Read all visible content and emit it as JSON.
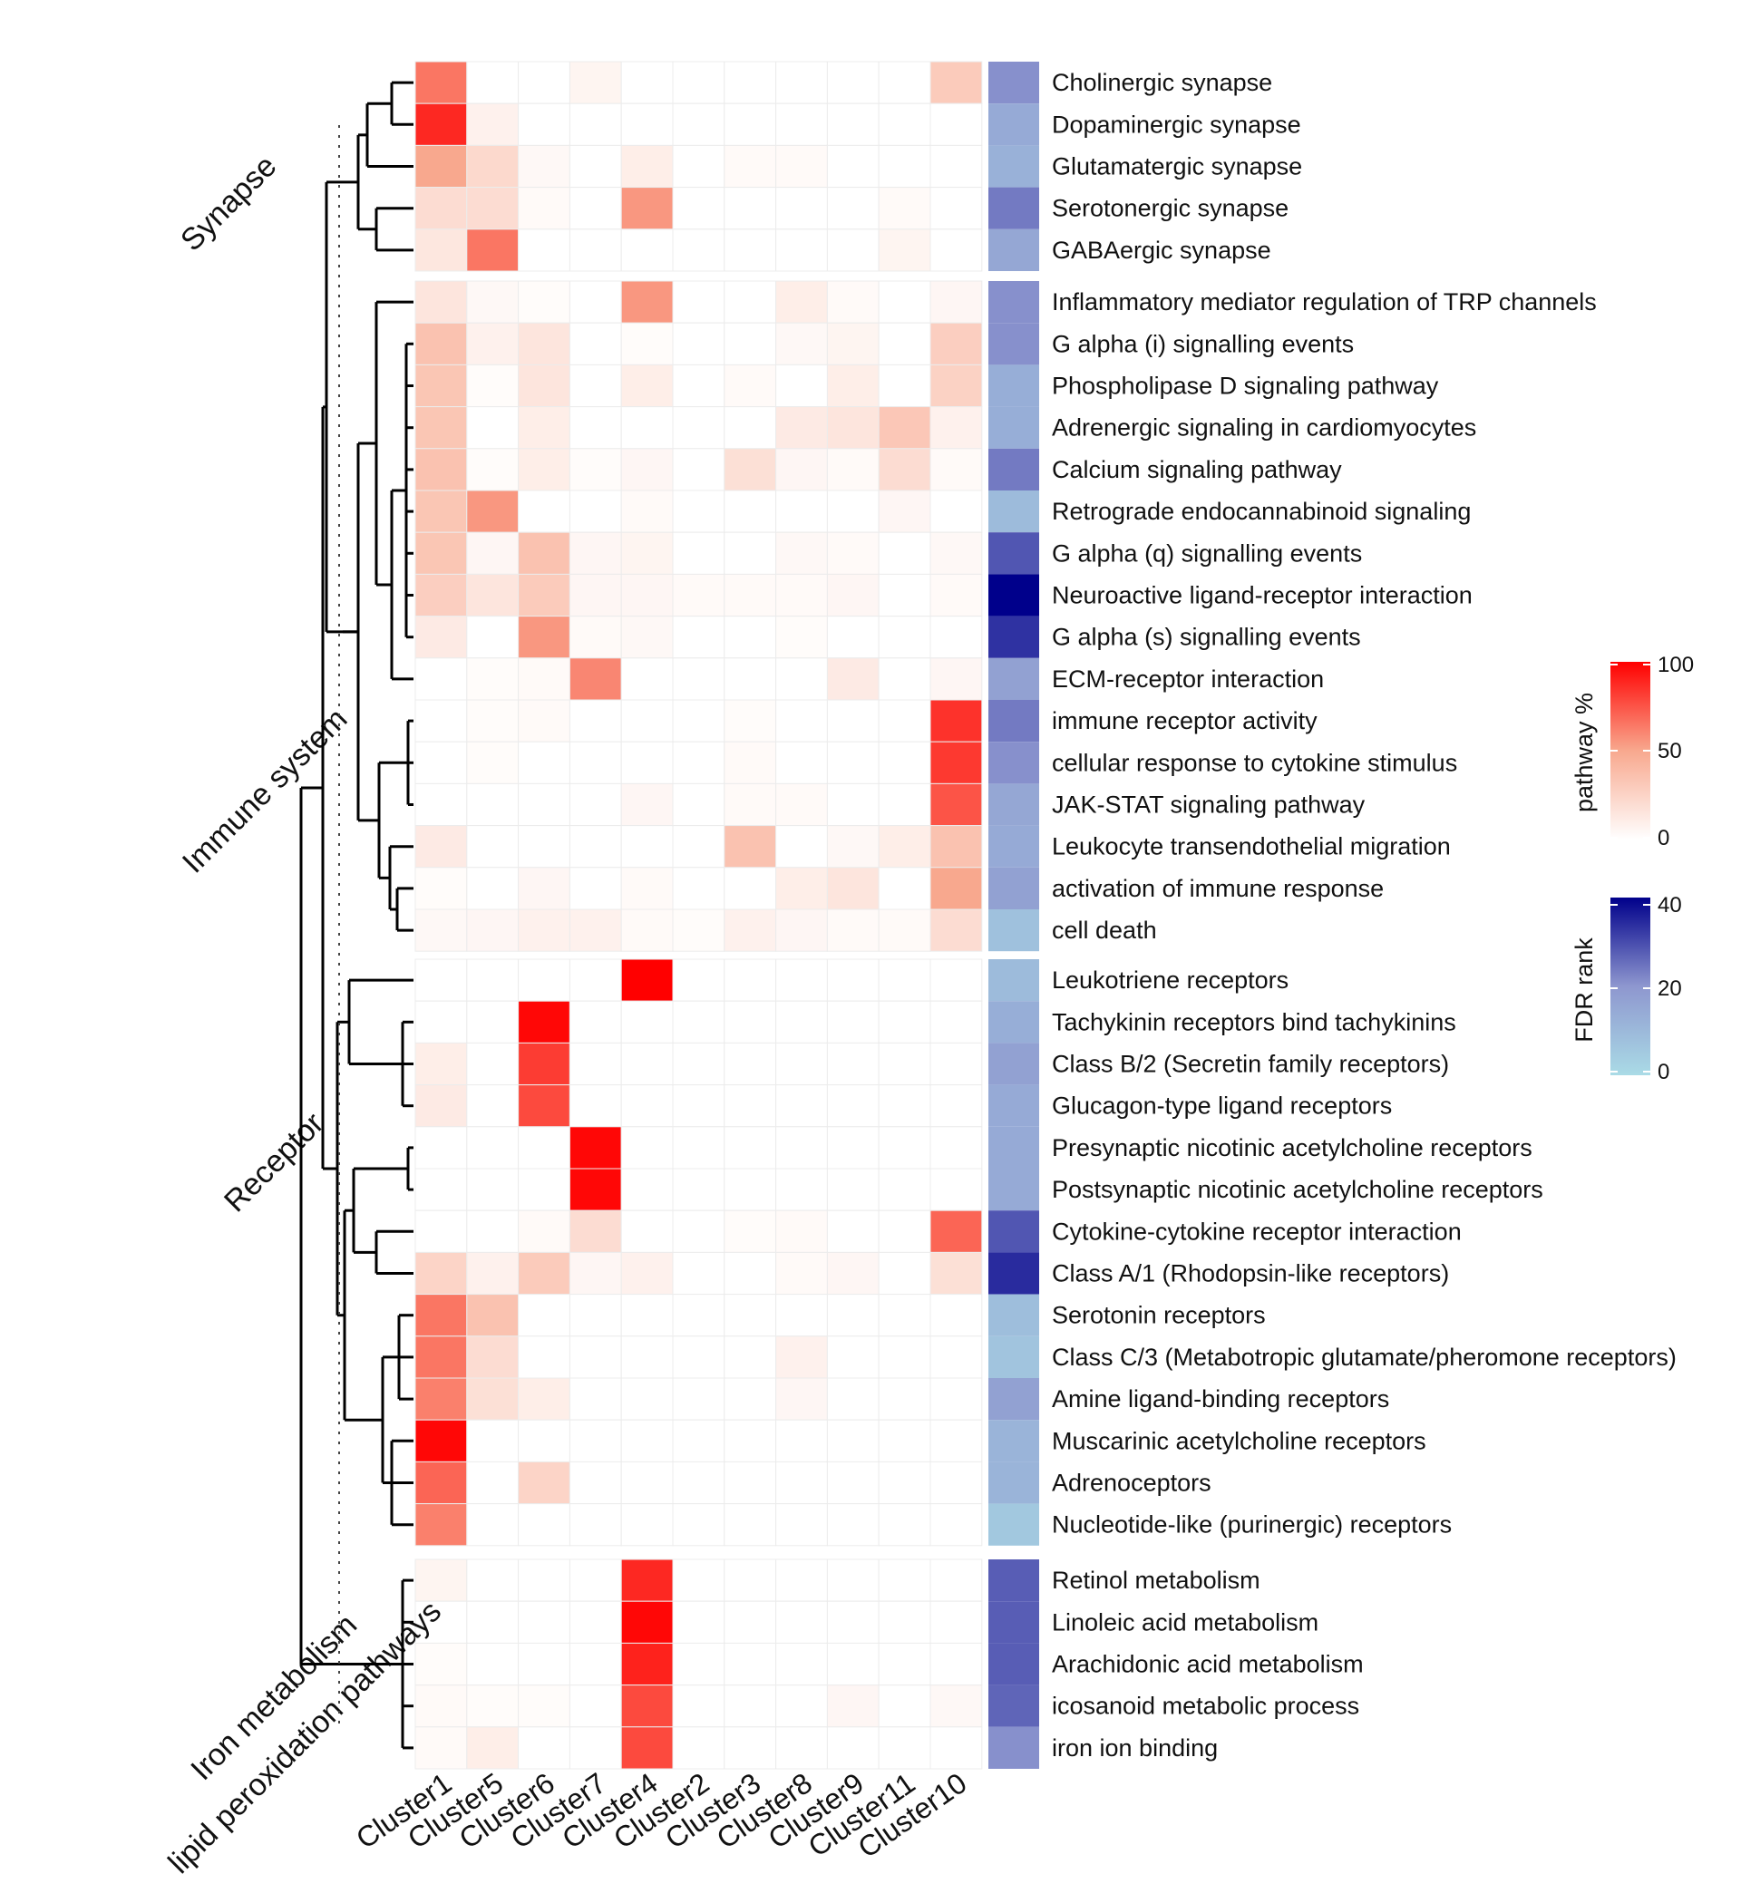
{
  "chart_data": {
    "type": "heatmap",
    "title": "",
    "columns": [
      "Cluster1",
      "Cluster5",
      "Cluster6",
      "Cluster7",
      "Cluster4",
      "Cluster2",
      "Cluster3",
      "Cluster8",
      "Cluster9",
      "Cluster11",
      "Cluster10"
    ],
    "groups": [
      {
        "name": "Synapse",
        "rows": [
          {
            "label": "Cholinergic synapse",
            "values": [
              65,
              0,
              0,
              6,
              0,
              0,
              0,
              0,
              0,
              0,
              30
            ],
            "fdr": 22
          },
          {
            "label": "Dopaminergic synapse",
            "values": [
              88,
              8,
              0,
              0,
              0,
              0,
              0,
              0,
              0,
              0,
              0
            ],
            "fdr": 15
          },
          {
            "label": "Glutamatergic synapse",
            "values": [
              50,
              22,
              4,
              0,
              10,
              0,
              3,
              3,
              0,
              0,
              0
            ],
            "fdr": 13
          },
          {
            "label": "Serotonergic synapse",
            "values": [
              20,
              20,
              3,
              0,
              55,
              0,
              0,
              0,
              0,
              3,
              0
            ],
            "fdr": 25
          },
          {
            "label": "GABAergic synapse",
            "values": [
              14,
              65,
              0,
              0,
              0,
              0,
              0,
              0,
              0,
              6,
              0
            ],
            "fdr": 16
          }
        ]
      },
      {
        "name": "Immune system",
        "rows": [
          {
            "label": "Inflammatory mediator regulation of TRP channels",
            "values": [
              15,
              4,
              2,
              0,
              55,
              0,
              0,
              10,
              3,
              0,
              5
            ],
            "fdr": 22
          },
          {
            "label": "G alpha (i) signalling events",
            "values": [
              35,
              8,
              15,
              0,
              2,
              0,
              0,
              4,
              6,
              0,
              28
            ],
            "fdr": 22
          },
          {
            "label": "Phospholipase D signaling pathway",
            "values": [
              33,
              2,
              15,
              0,
              10,
              0,
              3,
              0,
              10,
              0,
              26
            ],
            "fdr": 14
          },
          {
            "label": "Adrenergic signaling in cardiomyocytes",
            "values": [
              33,
              0,
              10,
              0,
              0,
              0,
              0,
              12,
              15,
              32,
              8
            ],
            "fdr": 14
          },
          {
            "label": "Calcium signaling pathway",
            "values": [
              35,
              2,
              10,
              2,
              5,
              0,
              18,
              5,
              3,
              20,
              3
            ],
            "fdr": 25
          },
          {
            "label": "Retrograde endocannabinoid signaling",
            "values": [
              33,
              55,
              0,
              0,
              3,
              0,
              0,
              0,
              0,
              5,
              0
            ],
            "fdr": 10
          },
          {
            "label": "G alpha (q) signalling events",
            "values": [
              33,
              5,
              35,
              5,
              6,
              0,
              0,
              4,
              3,
              0,
              4
            ],
            "fdr": 30
          },
          {
            "label": "Neuroactive ligand-receptor interaction",
            "values": [
              28,
              15,
              30,
              5,
              5,
              3,
              3,
              3,
              5,
              0,
              3
            ],
            "fdr": 42
          },
          {
            "label": "G alpha (s) signalling events",
            "values": [
              12,
              0,
              55,
              3,
              4,
              0,
              0,
              2,
              0,
              0,
              0
            ],
            "fdr": 35
          },
          {
            "label": "ECM-receptor interaction",
            "values": [
              0,
              2,
              3,
              60,
              0,
              0,
              0,
              0,
              12,
              0,
              5
            ],
            "fdr": 18
          },
          {
            "label": "immune receptor activity",
            "values": [
              0,
              2,
              3,
              0,
              0,
              0,
              2,
              0,
              0,
              0,
              85
            ],
            "fdr": 25
          },
          {
            "label": "cellular response to cytokine stimulus",
            "values": [
              0,
              2,
              0,
              0,
              0,
              0,
              3,
              0,
              0,
              0,
              83
            ],
            "fdr": 22
          },
          {
            "label": "JAK-STAT signaling pathway",
            "values": [
              0,
              0,
              0,
              0,
              5,
              0,
              3,
              3,
              0,
              0,
              75
            ],
            "fdr": 16
          },
          {
            "label": "Leukocyte transendothelial migration",
            "values": [
              12,
              0,
              0,
              0,
              0,
              0,
              35,
              0,
              4,
              10,
              35
            ],
            "fdr": 15
          },
          {
            "label": "activation of immune response",
            "values": [
              2,
              0,
              5,
              0,
              3,
              0,
              0,
              10,
              15,
              0,
              50
            ],
            "fdr": 18
          },
          {
            "label": "cell death",
            "values": [
              4,
              5,
              8,
              8,
              3,
              2,
              8,
              5,
              3,
              3,
              20
            ],
            "fdr": 8
          }
        ]
      },
      {
        "name": "Receptor",
        "rows": [
          {
            "label": "Leukotriene receptors",
            "values": [
              0,
              0,
              0,
              0,
              100,
              0,
              0,
              0,
              0,
              0,
              0
            ],
            "fdr": 10
          },
          {
            "label": "Tachykinin receptors bind tachykinins",
            "values": [
              0,
              0,
              98,
              0,
              0,
              0,
              0,
              0,
              0,
              0,
              0
            ],
            "fdr": 14
          },
          {
            "label": "Class B/2 (Secretin family receptors)",
            "values": [
              10,
              0,
              82,
              0,
              0,
              0,
              0,
              0,
              0,
              0,
              0
            ],
            "fdr": 18
          },
          {
            "label": "Glucagon-type ligand receptors",
            "values": [
              12,
              0,
              78,
              0,
              0,
              0,
              0,
              0,
              0,
              0,
              0
            ],
            "fdr": 15
          },
          {
            "label": "Presynaptic nicotinic acetylcholine receptors",
            "values": [
              0,
              0,
              0,
              98,
              0,
              0,
              0,
              0,
              0,
              0,
              0
            ],
            "fdr": 15
          },
          {
            "label": "Postsynaptic nicotinic acetylcholine receptors",
            "values": [
              0,
              0,
              0,
              98,
              0,
              0,
              0,
              0,
              0,
              0,
              0
            ],
            "fdr": 15
          },
          {
            "label": "Cytokine-cytokine receptor interaction",
            "values": [
              0,
              0,
              3,
              20,
              0,
              0,
              2,
              3,
              0,
              0,
              70
            ],
            "fdr": 30
          },
          {
            "label": "Class A/1 (Rhodopsin-like receptors)",
            "values": [
              25,
              8,
              30,
              5,
              8,
              0,
              0,
              3,
              5,
              0,
              18
            ],
            "fdr": 36
          },
          {
            "label": "Serotonin receptors",
            "values": [
              65,
              35,
              0,
              0,
              0,
              0,
              0,
              0,
              0,
              0,
              0
            ],
            "fdr": 9
          },
          {
            "label": "Class C/3 (Metabotropic glutamate/pheromone receptors)",
            "values": [
              65,
              20,
              0,
              0,
              0,
              0,
              0,
              8,
              0,
              0,
              0
            ],
            "fdr": 7
          },
          {
            "label": "Amine ligand-binding receptors",
            "values": [
              62,
              18,
              10,
              0,
              0,
              0,
              0,
              5,
              0,
              0,
              0
            ],
            "fdr": 18
          },
          {
            "label": "Muscarinic acetylcholine receptors",
            "values": [
              98,
              0,
              0,
              0,
              0,
              0,
              0,
              0,
              0,
              0,
              0
            ],
            "fdr": 12
          },
          {
            "label": "Adrenoceptors",
            "values": [
              70,
              0,
              25,
              0,
              0,
              0,
              0,
              0,
              0,
              0,
              0
            ],
            "fdr": 12
          },
          {
            "label": "Nucleotide-like (purinergic) receptors",
            "values": [
              62,
              0,
              0,
              0,
              0,
              0,
              0,
              0,
              0,
              0,
              0
            ],
            "fdr": 6
          }
        ]
      },
      {
        "name": "Iron metabolism\nlipid peroxidation pathways",
        "rows": [
          {
            "label": "Retinol metabolism",
            "values": [
              6,
              0,
              0,
              0,
              88,
              0,
              0,
              0,
              0,
              0,
              0
            ],
            "fdr": 29
          },
          {
            "label": "Linoleic acid metabolism",
            "values": [
              0,
              0,
              0,
              0,
              98,
              0,
              0,
              0,
              0,
              0,
              0
            ],
            "fdr": 29
          },
          {
            "label": "Arachidonic acid metabolism",
            "values": [
              2,
              0,
              0,
              0,
              90,
              0,
              0,
              0,
              0,
              0,
              0
            ],
            "fdr": 29
          },
          {
            "label": "icosanoid metabolic process",
            "values": [
              3,
              2,
              2,
              0,
              78,
              0,
              0,
              0,
              5,
              0,
              4
            ],
            "fdr": 28
          },
          {
            "label": "iron ion binding",
            "values": [
              3,
              10,
              0,
              0,
              78,
              0,
              0,
              0,
              0,
              0,
              0
            ],
            "fdr": 22
          }
        ]
      }
    ],
    "legend_pathway": {
      "title": "pathway %",
      "ticks": [
        "0",
        "50",
        "100"
      ],
      "range": [
        0,
        100
      ],
      "colors": [
        "#ffffff",
        "#ff0000"
      ]
    },
    "legend_fdr": {
      "title": "FDR rank",
      "ticks": [
        "0",
        "20",
        "40"
      ],
      "range": [
        0,
        42
      ],
      "colors": [
        "#aadbe6",
        "#00008b"
      ]
    }
  }
}
